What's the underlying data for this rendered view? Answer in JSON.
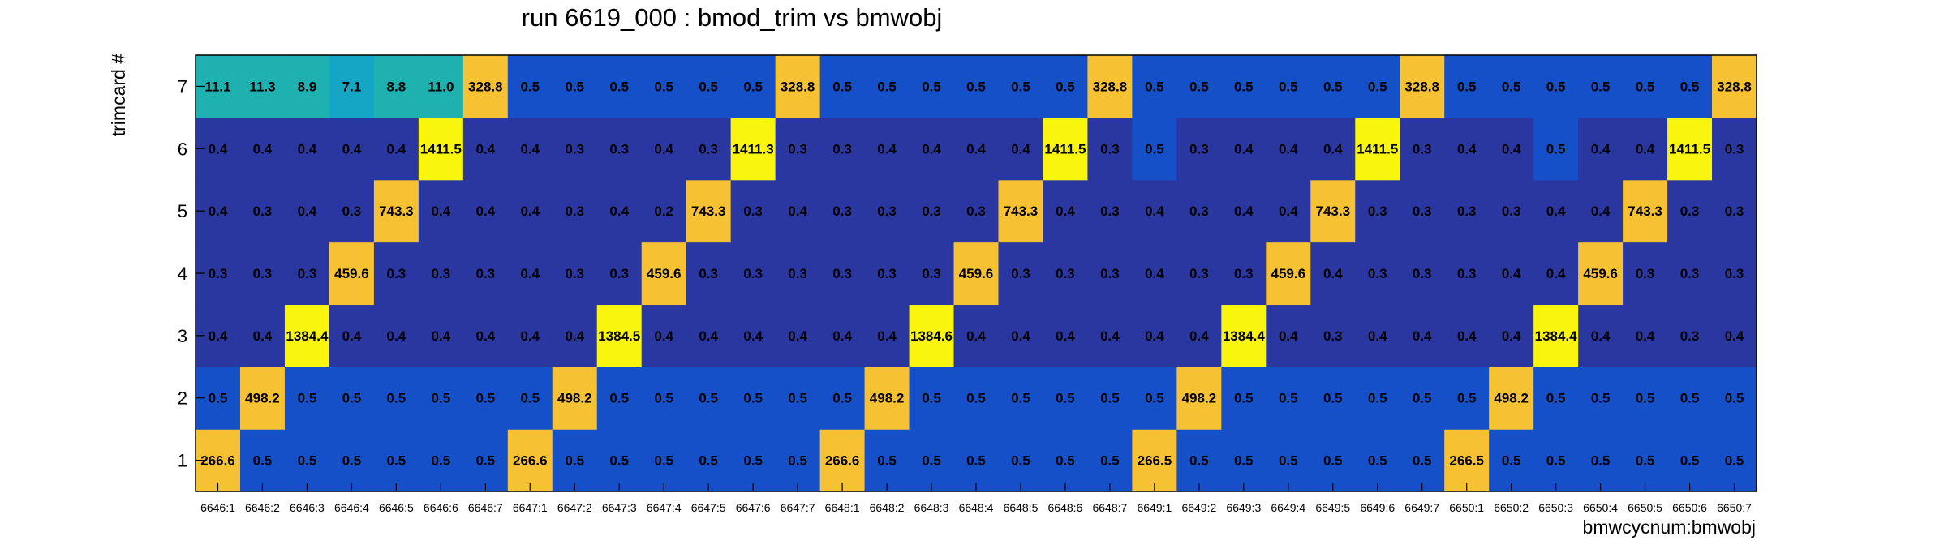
{
  "chart_data": {
    "type": "heatmap",
    "title": "run 6619_000 : bmod_trim vs bmwobj",
    "xlabel": "bmwcycnum:bmwobj",
    "ylabel": "trimcard #",
    "x_categories": [
      "6646:1",
      "6646:2",
      "6646:3",
      "6646:4",
      "6646:5",
      "6646:6",
      "6646:7",
      "6647:1",
      "6647:2",
      "6647:3",
      "6647:4",
      "6647:5",
      "6647:6",
      "6647:7",
      "6648:1",
      "6648:2",
      "6648:3",
      "6648:4",
      "6648:5",
      "6648:6",
      "6648:7",
      "6649:1",
      "6649:2",
      "6649:3",
      "6649:4",
      "6649:5",
      "6649:6",
      "6649:7",
      "6650:1",
      "6650:2",
      "6650:3",
      "6650:4",
      "6650:5",
      "6650:6",
      "6650:7"
    ],
    "y_categories": [
      "1",
      "2",
      "3",
      "4",
      "5",
      "6",
      "7"
    ],
    "values": [
      [
        266.6,
        0.5,
        0.5,
        0.5,
        0.5,
        0.5,
        0.5,
        266.6,
        0.5,
        0.5,
        0.5,
        0.5,
        0.5,
        0.5,
        266.6,
        0.5,
        0.5,
        0.5,
        0.5,
        0.5,
        0.5,
        266.5,
        0.5,
        0.5,
        0.5,
        0.5,
        0.5,
        0.5,
        266.5,
        0.5,
        0.5,
        0.5,
        0.5,
        0.5,
        0.5
      ],
      [
        0.5,
        498.2,
        0.5,
        0.5,
        0.5,
        0.5,
        0.5,
        0.5,
        498.2,
        0.5,
        0.5,
        0.5,
        0.5,
        0.5,
        0.5,
        498.2,
        0.5,
        0.5,
        0.5,
        0.5,
        0.5,
        0.5,
        498.2,
        0.5,
        0.5,
        0.5,
        0.5,
        0.5,
        0.5,
        498.2,
        0.5,
        0.5,
        0.5,
        0.5,
        0.5
      ],
      [
        0.4,
        0.4,
        1384.4,
        0.4,
        0.4,
        0.4,
        0.4,
        0.4,
        0.4,
        1384.5,
        0.4,
        0.4,
        0.4,
        0.4,
        0.4,
        0.4,
        1384.6,
        0.4,
        0.4,
        0.4,
        0.4,
        0.4,
        0.4,
        1384.4,
        0.4,
        0.3,
        0.4,
        0.4,
        0.4,
        0.4,
        1384.4,
        0.4,
        0.4,
        0.3,
        0.4
      ],
      [
        0.3,
        0.3,
        0.3,
        459.6,
        0.3,
        0.3,
        0.3,
        0.4,
        0.3,
        0.3,
        459.6,
        0.3,
        0.3,
        0.3,
        0.3,
        0.3,
        0.3,
        459.6,
        0.3,
        0.3,
        0.3,
        0.4,
        0.3,
        0.3,
        459.6,
        0.4,
        0.3,
        0.3,
        0.3,
        0.4,
        0.4,
        459.6,
        0.3,
        0.3,
        0.3
      ],
      [
        0.4,
        0.3,
        0.4,
        0.3,
        743.3,
        0.4,
        0.4,
        0.4,
        0.3,
        0.4,
        0.2,
        743.3,
        0.3,
        0.4,
        0.3,
        0.3,
        0.3,
        0.3,
        743.3,
        0.4,
        0.3,
        0.4,
        0.3,
        0.4,
        0.4,
        743.3,
        0.3,
        0.3,
        0.3,
        0.3,
        0.4,
        0.4,
        743.3,
        0.3,
        0.3
      ],
      [
        0.4,
        0.4,
        0.4,
        0.4,
        0.4,
        1411.5,
        0.4,
        0.4,
        0.3,
        0.3,
        0.4,
        0.3,
        1411.3,
        0.3,
        0.3,
        0.4,
        0.4,
        0.4,
        0.4,
        1411.5,
        0.3,
        0.5,
        0.3,
        0.4,
        0.4,
        0.4,
        1411.5,
        0.3,
        0.4,
        0.4,
        0.5,
        0.4,
        0.4,
        1411.5,
        0.3
      ],
      [
        11.1,
        11.3,
        8.9,
        7.1,
        8.8,
        11.0,
        328.8,
        0.5,
        0.5,
        0.5,
        0.5,
        0.5,
        0.5,
        328.8,
        0.5,
        0.5,
        0.5,
        0.5,
        0.5,
        0.5,
        328.8,
        0.5,
        0.5,
        0.5,
        0.5,
        0.5,
        0.5,
        328.8,
        0.5,
        0.5,
        0.5,
        0.5,
        0.5,
        0.5,
        328.8
      ]
    ],
    "colors": {
      "low_dark": "#2a37a0",
      "low": "#1650c9",
      "mid": "#14a6c4",
      "teal": "#1fb0b0",
      "orange": "#f7c134",
      "yellow": "#f9f50e"
    }
  }
}
